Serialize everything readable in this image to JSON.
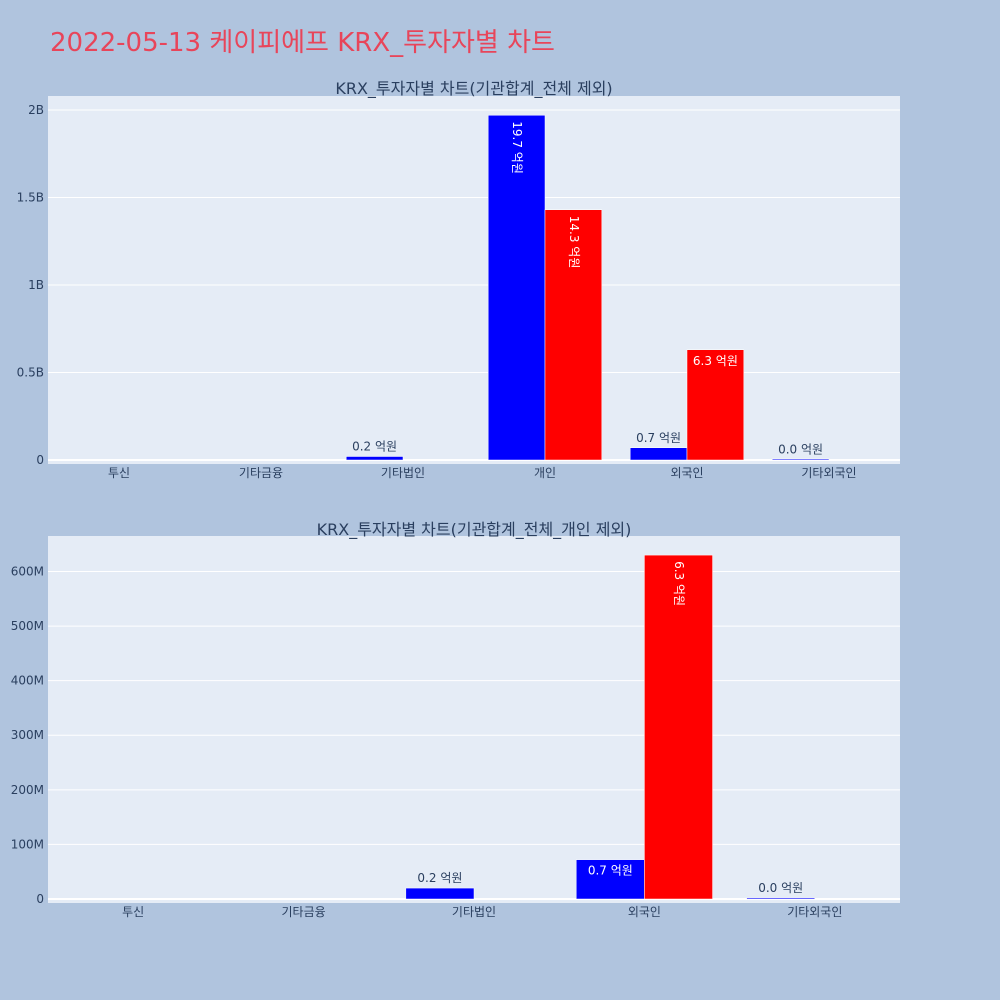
{
  "page_title": "2022-05-13 케이피에프 KRX_투자자별 차트",
  "colors": {
    "buy": "#0000ff",
    "sell": "#ff0000",
    "plot_bg": "#e5ecf6",
    "page_bg": "#b0c4de",
    "title": "#e8455a"
  },
  "chart_data": [
    {
      "type": "bar",
      "title": "KRX_투자자별 차트(기관합계_전체 제외)",
      "categories": [
        "투신",
        "기타금융",
        "기타법인",
        "개인",
        "외국인",
        "기타외국인"
      ],
      "series": [
        {
          "values": [
            0,
            0,
            20000000,
            1970000000,
            70000000,
            2000000
          ],
          "labels": [
            "",
            "",
            "0.2 억원",
            "19.7 억원",
            "0.7 억원",
            "0.0 억원"
          ]
        },
        {
          "values": [
            0,
            0,
            0,
            1430000000,
            630000000,
            0
          ],
          "labels": [
            "",
            "",
            "",
            "14.3 억원",
            "6.3 억원",
            ""
          ]
        }
      ],
      "ylim": [
        0,
        2080000000
      ],
      "yticks": [
        0,
        500000000,
        1000000000,
        1500000000,
        2000000000
      ],
      "ytick_labels": [
        "0",
        "0.5B",
        "1B",
        "1.5B",
        "2B"
      ],
      "grid": true
    },
    {
      "type": "bar",
      "title": "KRX_투자자별 차트(기관합계_전체_개인 제외)",
      "categories": [
        "투신",
        "기타금융",
        "기타법인",
        "외국인",
        "기타외국인"
      ],
      "series": [
        {
          "values": [
            0,
            0,
            20000000,
            72000000,
            2000000
          ],
          "labels": [
            "",
            "",
            "0.2 억원",
            "0.7 억원",
            "0.0 억원"
          ]
        },
        {
          "values": [
            0,
            0,
            0,
            630000000,
            0
          ],
          "labels": [
            "",
            "",
            "",
            "6.3 억원",
            ""
          ]
        }
      ],
      "ylim": [
        0,
        665000000
      ],
      "yticks": [
        0,
        100000000,
        200000000,
        300000000,
        400000000,
        500000000,
        600000000
      ],
      "ytick_labels": [
        "0",
        "100M",
        "200M",
        "300M",
        "400M",
        "500M",
        "600M"
      ],
      "grid": true
    }
  ]
}
